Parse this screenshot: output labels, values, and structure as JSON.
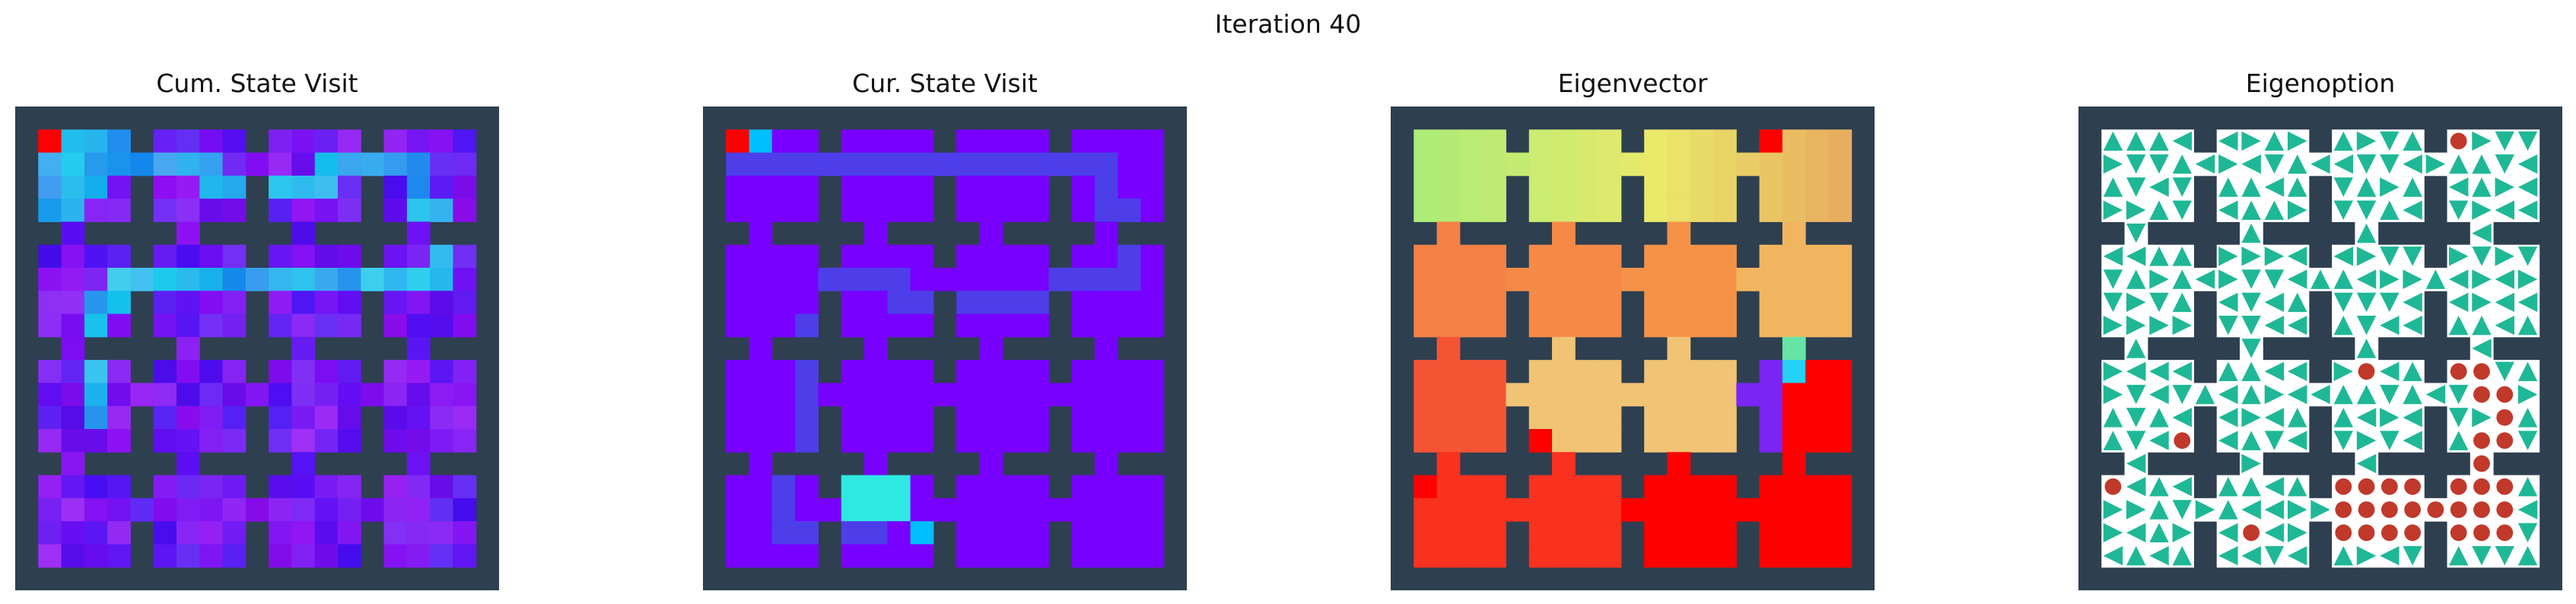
{
  "figure": {
    "title": "Iteration 40",
    "panels": [
      {
        "name": "cum-state-visit",
        "title": "Cum. State Visit"
      },
      {
        "name": "cur-state-visit",
        "title": "Cur. State Visit"
      },
      {
        "name": "eigenvector",
        "title": "Eigenvector"
      },
      {
        "name": "eigenoption",
        "title": "Eigenoption"
      }
    ]
  },
  "colors": {
    "wall": "#2e3f50",
    "arrow": "#1fb896",
    "terminal": "#c0392b",
    "background_cell": "#ffffff",
    "low_visit": "#7a00ff",
    "peak": "#ff0000"
  },
  "environment": {
    "type": "four-by-four rooms gridwold",
    "rooms": 16
  }
}
